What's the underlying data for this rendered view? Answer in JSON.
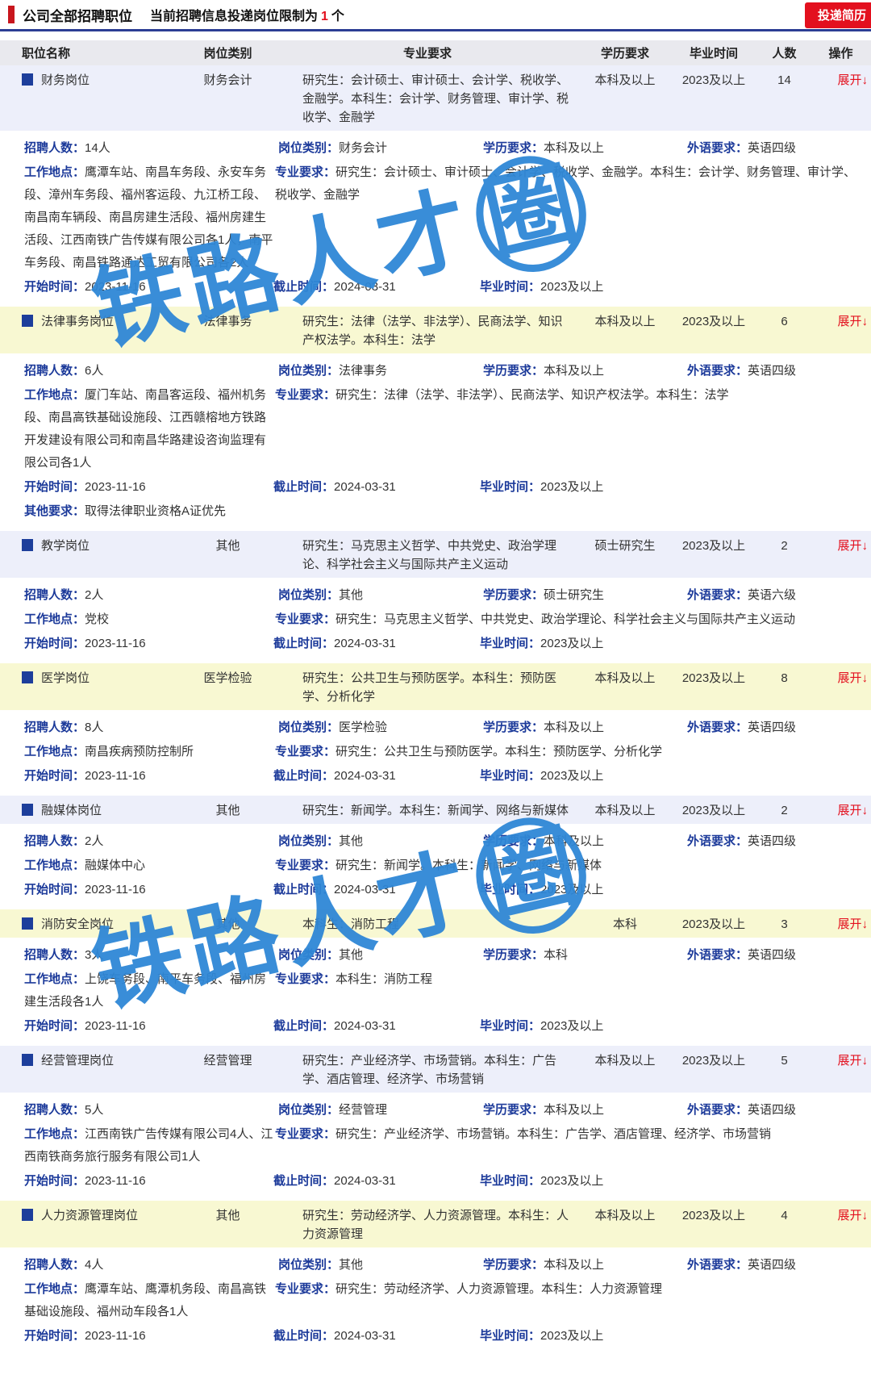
{
  "header": {
    "title": "公司全部招聘职位",
    "subtitle_prefix": "当前招聘信息投递岗位限制为",
    "subtitle_count": "1",
    "subtitle_suffix": "个",
    "submit_button": "投递简历"
  },
  "table": {
    "columns": {
      "title": "职位名称",
      "category": "岗位类别",
      "major": "专业要求",
      "education": "学历要求",
      "graduation": "毕业时间",
      "count": "人数",
      "action": "操作"
    }
  },
  "labels": {
    "recruit_count": "招聘人数：",
    "category": "岗位类别：",
    "education": "学历要求：",
    "foreign_language": "外语要求：",
    "work_location": "工作地点：",
    "major": "专业要求：",
    "start_date": "开始时间：",
    "end_date": "截止时间：",
    "graduation": "毕业时间：",
    "other": "其他要求：",
    "expand": "展开↓"
  },
  "watermark": {
    "text": "铁路人才",
    "circled": "圈",
    "color": "#2f87d6"
  },
  "colors": {
    "label_navy": "#1c3a9a",
    "accent_red": "#e3101e",
    "row_lavender": "#edeffa",
    "row_yellow": "#f8f8d2",
    "head_gray": "#e9e9ee",
    "rule_navy": "#2c3e94"
  },
  "jobs": [
    {
      "title": "财务岗位",
      "category": "财务会计",
      "major_summary": "研究生：会计硕士、审计硕士、会计学、税收学、金融学。本科生：会计学、财务管理、审计学、税收学、金融学",
      "education": "本科及以上",
      "graduation": "2023及以上",
      "count": "14",
      "highlight": "lavender",
      "detail": {
        "recruit_count": "14人",
        "category": "财务会计",
        "education": "本科及以上",
        "foreign_language": "英语四级",
        "work_location": "鹰潭车站、南昌车务段、永安车务段、漳州车务段、福州客运段、九江桥工段、南昌南车辆段、南昌房建生活段、福州房建生活段、江西南铁广告传媒有限公司各1人，南平车务段、南昌铁路通达工贸有限公司各2人",
        "major": "研究生：会计硕士、审计硕士、会计学、税收学、金融学。本科生：会计学、财务管理、审计学、税收学、金融学",
        "start_date": "2023-11-16",
        "end_date": "2024-03-31",
        "graduation": "2023及以上"
      }
    },
    {
      "title": "法律事务岗位",
      "category": "法律事务",
      "major_summary": "研究生：法律（法学、非法学）、民商法学、知识产权法学。本科生：法学",
      "education": "本科及以上",
      "graduation": "2023及以上",
      "count": "6",
      "highlight": "yellow",
      "detail": {
        "recruit_count": "6人",
        "category": "法律事务",
        "education": "本科及以上",
        "foreign_language": "英语四级",
        "work_location": "厦门车站、南昌客运段、福州机务段、南昌高铁基础设施段、江西赣榕地方铁路开发建设有限公司和南昌华路建设咨询监理有限公司各1人",
        "major": "研究生：法律（法学、非法学）、民商法学、知识产权法学。本科生：法学",
        "start_date": "2023-11-16",
        "end_date": "2024-03-31",
        "graduation": "2023及以上",
        "other": "取得法律职业资格A证优先"
      }
    },
    {
      "title": "教学岗位",
      "category": "其他",
      "major_summary": "研究生：马克思主义哲学、中共党史、政治学理论、科学社会主义与国际共产主义运动",
      "education": "硕士研究生",
      "graduation": "2023及以上",
      "count": "2",
      "highlight": "lavender",
      "detail": {
        "recruit_count": "2人",
        "category": "其他",
        "education": "硕士研究生",
        "foreign_language": "英语六级",
        "work_location": "党校",
        "major": "研究生：马克思主义哲学、中共党史、政治学理论、科学社会主义与国际共产主义运动",
        "start_date": "2023-11-16",
        "end_date": "2024-03-31",
        "graduation": "2023及以上"
      }
    },
    {
      "title": "医学岗位",
      "category": "医学检验",
      "major_summary": "研究生：公共卫生与预防医学。本科生：预防医学、分析化学",
      "education": "本科及以上",
      "graduation": "2023及以上",
      "count": "8",
      "highlight": "yellow",
      "detail": {
        "recruit_count": "8人",
        "category": "医学检验",
        "education": "本科及以上",
        "foreign_language": "英语四级",
        "work_location": "南昌疾病预防控制所",
        "major": "研究生：公共卫生与预防医学。本科生：预防医学、分析化学",
        "start_date": "2023-11-16",
        "end_date": "2024-03-31",
        "graduation": "2023及以上"
      }
    },
    {
      "title": "融媒体岗位",
      "category": "其他",
      "major_summary": "研究生：新闻学。本科生：新闻学、网络与新媒体",
      "education": "本科及以上",
      "graduation": "2023及以上",
      "count": "2",
      "highlight": "lavender",
      "detail": {
        "recruit_count": "2人",
        "category": "其他",
        "education": "本科及以上",
        "foreign_language": "英语四级",
        "work_location": "融媒体中心",
        "major": "研究生：新闻学。本科生：新闻学、网络与新媒体",
        "start_date": "2023-11-16",
        "end_date": "2024-03-31",
        "graduation": "2023及以上"
      }
    },
    {
      "title": "消防安全岗位",
      "category": "其他",
      "major_summary": "本科生：消防工程",
      "education": "本科",
      "graduation": "2023及以上",
      "count": "3",
      "highlight": "yellow",
      "detail": {
        "recruit_count": "3人",
        "category": "其他",
        "education": "本科",
        "foreign_language": "英语四级",
        "work_location": "上饶车务段、南平车务段、福州房建生活段各1人",
        "major": "本科生：消防工程",
        "start_date": "2023-11-16",
        "end_date": "2024-03-31",
        "graduation": "2023及以上"
      }
    },
    {
      "title": "经营管理岗位",
      "category": "经营管理",
      "major_summary": "研究生：产业经济学、市场营销。本科生：广告学、酒店管理、经济学、市场营销",
      "education": "本科及以上",
      "graduation": "2023及以上",
      "count": "5",
      "highlight": "lavender",
      "detail": {
        "recruit_count": "5人",
        "category": "经营管理",
        "education": "本科及以上",
        "foreign_language": "英语四级",
        "work_location": "江西南铁广告传媒有限公司4人、江西南铁商务旅行服务有限公司1人",
        "major": "研究生：产业经济学、市场营销。本科生：广告学、酒店管理、经济学、市场营销",
        "start_date": "2023-11-16",
        "end_date": "2024-03-31",
        "graduation": "2023及以上"
      }
    },
    {
      "title": "人力资源管理岗位",
      "category": "其他",
      "major_summary": "研究生：劳动经济学、人力资源管理。本科生：人力资源管理",
      "education": "本科及以上",
      "graduation": "2023及以上",
      "count": "4",
      "highlight": "yellow",
      "detail": {
        "recruit_count": "4人",
        "category": "其他",
        "education": "本科及以上",
        "foreign_language": "英语四级",
        "work_location": "鹰潭车站、鹰潭机务段、南昌高铁基础设施段、福州动车段各1人",
        "major": "研究生：劳动经济学、人力资源管理。本科生：人力资源管理",
        "start_date": "2023-11-16",
        "end_date": "2024-03-31",
        "graduation": "2023及以上"
      }
    }
  ]
}
